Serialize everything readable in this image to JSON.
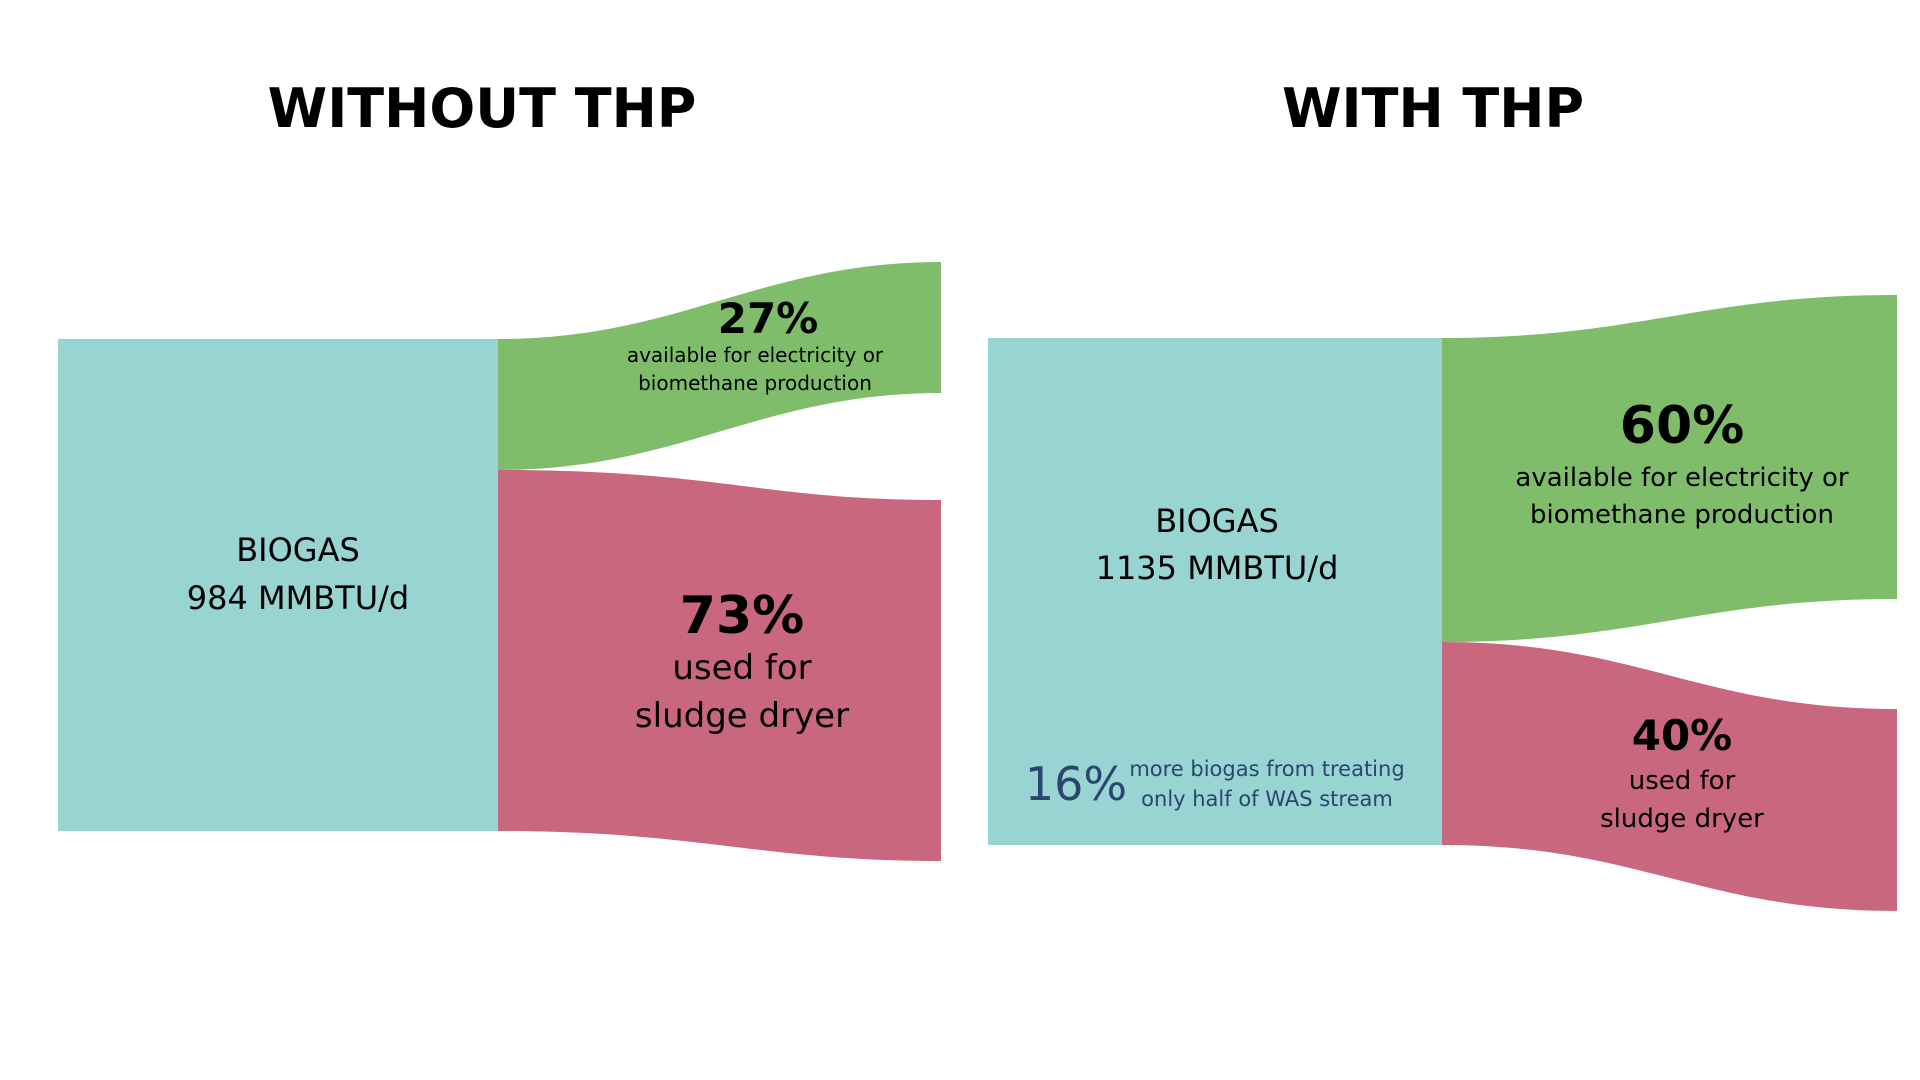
{
  "colors": {
    "source": "#98d4d2",
    "available": "#7fbd6b",
    "dryer": "#c9677e",
    "note": "#2b4470"
  },
  "panels": {
    "without": {
      "title": "WITHOUT THP",
      "source_label": "BIOGAS",
      "source_value": "984 MMBTU/d",
      "available": {
        "percent": "27%",
        "fraction": 0.27,
        "line1": "available for electricity or",
        "line2": "biomethane production"
      },
      "dryer": {
        "percent": "73%",
        "fraction": 0.73,
        "line1": "used for",
        "line2": "sludge dryer"
      }
    },
    "with": {
      "title": "WITH THP",
      "source_label": "BIOGAS",
      "source_value": "1135 MMBTU/d",
      "available": {
        "percent": "60%",
        "fraction": 0.6,
        "line1": "available for electricity or",
        "line2": "biomethane production"
      },
      "dryer": {
        "percent": "40%",
        "fraction": 0.4,
        "line1": "used for",
        "line2": "sludge dryer"
      },
      "note": {
        "percent": "16%",
        "line1": "more biogas from treating",
        "line2": "only half of WAS stream"
      }
    }
  }
}
